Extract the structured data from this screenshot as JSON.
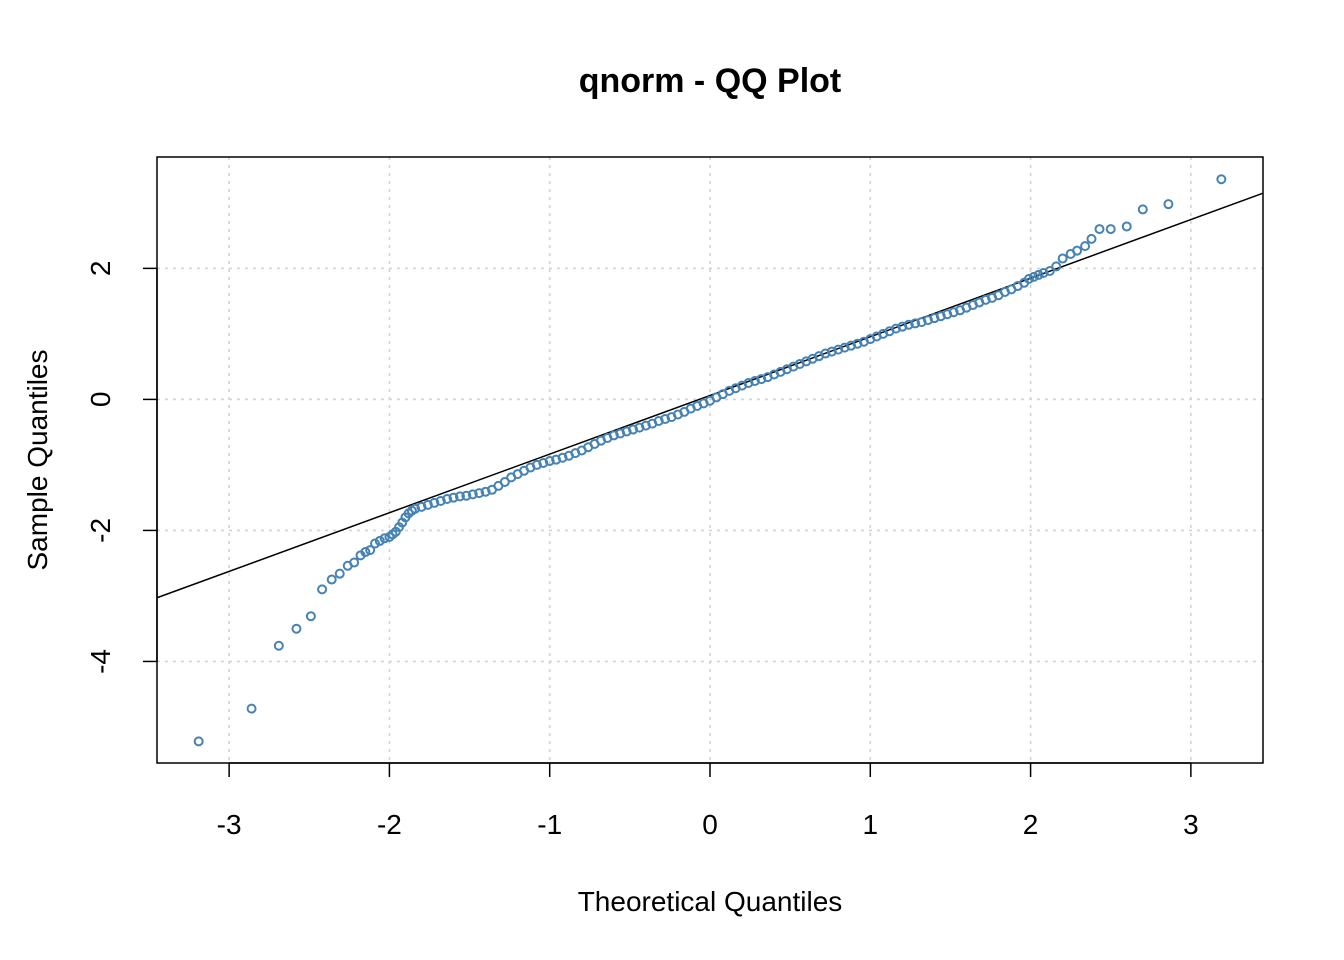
{
  "chart_data": {
    "type": "scatter",
    "title": "qnorm - QQ Plot",
    "xlabel": "Theoretical Quantiles",
    "ylabel": "Sample Quantiles",
    "xlim": [
      -3.45,
      3.45
    ],
    "ylim": [
      -5.55,
      3.7
    ],
    "x_ticks": [
      -3,
      -2,
      -1,
      0,
      1,
      2,
      3
    ],
    "y_ticks": [
      -4,
      -2,
      0,
      2
    ],
    "x_tick_labels": [
      "-3",
      "-2",
      "-1",
      "0",
      "1",
      "2",
      "3"
    ],
    "y_tick_labels": [
      "-4",
      "-2",
      "0",
      "2"
    ],
    "grid": true,
    "point_color": "#4682b4",
    "line_color": "#000000",
    "reference_line": {
      "intercept": 0.06,
      "slope": 0.895
    },
    "points": [
      [
        -3.19,
        -5.22
      ],
      [
        -2.86,
        -4.72
      ],
      [
        -2.69,
        -3.76
      ],
      [
        -2.58,
        -3.5
      ],
      [
        -2.49,
        -3.31
      ],
      [
        -2.42,
        -2.9
      ],
      [
        -2.36,
        -2.75
      ],
      [
        -2.31,
        -2.66
      ],
      [
        -2.26,
        -2.54
      ],
      [
        -2.22,
        -2.49
      ],
      [
        -2.18,
        -2.38
      ],
      [
        -2.15,
        -2.33
      ],
      [
        -2.12,
        -2.3
      ],
      [
        -2.09,
        -2.2
      ],
      [
        -2.06,
        -2.16
      ],
      [
        -2.03,
        -2.12
      ],
      [
        -2.0,
        -2.1
      ],
      [
        -1.98,
        -2.06
      ],
      [
        -1.96,
        -2.02
      ],
      [
        -1.94,
        -1.95
      ],
      [
        -1.92,
        -1.88
      ],
      [
        -1.9,
        -1.8
      ],
      [
        -1.88,
        -1.74
      ],
      [
        -1.86,
        -1.7
      ],
      [
        -1.84,
        -1.67
      ],
      [
        -1.8,
        -1.64
      ],
      [
        -1.76,
        -1.61
      ],
      [
        -1.72,
        -1.58
      ],
      [
        -1.68,
        -1.55
      ],
      [
        -1.64,
        -1.52
      ],
      [
        -1.6,
        -1.5
      ],
      [
        -1.56,
        -1.48
      ],
      [
        -1.52,
        -1.47
      ],
      [
        -1.48,
        -1.45
      ],
      [
        -1.44,
        -1.43
      ],
      [
        -1.4,
        -1.41
      ],
      [
        -1.36,
        -1.38
      ],
      [
        -1.32,
        -1.32
      ],
      [
        -1.28,
        -1.26
      ],
      [
        -1.24,
        -1.19
      ],
      [
        -1.2,
        -1.14
      ],
      [
        -1.16,
        -1.09
      ],
      [
        -1.12,
        -1.04
      ],
      [
        -1.08,
        -1.0
      ],
      [
        -1.04,
        -0.97
      ],
      [
        -1.0,
        -0.94
      ],
      [
        -0.96,
        -0.92
      ],
      [
        -0.92,
        -0.89
      ],
      [
        -0.88,
        -0.86
      ],
      [
        -0.84,
        -0.82
      ],
      [
        -0.8,
        -0.78
      ],
      [
        -0.76,
        -0.73
      ],
      [
        -0.72,
        -0.68
      ],
      [
        -0.68,
        -0.63
      ],
      [
        -0.64,
        -0.59
      ],
      [
        -0.6,
        -0.55
      ],
      [
        -0.56,
        -0.52
      ],
      [
        -0.52,
        -0.49
      ],
      [
        -0.48,
        -0.46
      ],
      [
        -0.44,
        -0.43
      ],
      [
        -0.4,
        -0.4
      ],
      [
        -0.36,
        -0.37
      ],
      [
        -0.32,
        -0.33
      ],
      [
        -0.28,
        -0.3
      ],
      [
        -0.24,
        -0.27
      ],
      [
        -0.2,
        -0.23
      ],
      [
        -0.16,
        -0.19
      ],
      [
        -0.12,
        -0.14
      ],
      [
        -0.08,
        -0.1
      ],
      [
        -0.04,
        -0.06
      ],
      [
        0.0,
        -0.02
      ],
      [
        0.04,
        0.03
      ],
      [
        0.08,
        0.08
      ],
      [
        0.12,
        0.13
      ],
      [
        0.16,
        0.17
      ],
      [
        0.2,
        0.21
      ],
      [
        0.24,
        0.25
      ],
      [
        0.28,
        0.28
      ],
      [
        0.32,
        0.31
      ],
      [
        0.36,
        0.34
      ],
      [
        0.4,
        0.38
      ],
      [
        0.44,
        0.42
      ],
      [
        0.48,
        0.46
      ],
      [
        0.52,
        0.5
      ],
      [
        0.56,
        0.54
      ],
      [
        0.6,
        0.58
      ],
      [
        0.64,
        0.62
      ],
      [
        0.68,
        0.66
      ],
      [
        0.72,
        0.7
      ],
      [
        0.76,
        0.73
      ],
      [
        0.8,
        0.76
      ],
      [
        0.84,
        0.79
      ],
      [
        0.88,
        0.82
      ],
      [
        0.92,
        0.85
      ],
      [
        0.96,
        0.88
      ],
      [
        1.0,
        0.92
      ],
      [
        1.04,
        0.96
      ],
      [
        1.08,
        1.0
      ],
      [
        1.12,
        1.04
      ],
      [
        1.16,
        1.08
      ],
      [
        1.2,
        1.11
      ],
      [
        1.24,
        1.14
      ],
      [
        1.28,
        1.16
      ],
      [
        1.32,
        1.18
      ],
      [
        1.36,
        1.21
      ],
      [
        1.4,
        1.24
      ],
      [
        1.44,
        1.27
      ],
      [
        1.48,
        1.3
      ],
      [
        1.52,
        1.33
      ],
      [
        1.56,
        1.36
      ],
      [
        1.6,
        1.4
      ],
      [
        1.64,
        1.44
      ],
      [
        1.68,
        1.48
      ],
      [
        1.72,
        1.52
      ],
      [
        1.76,
        1.55
      ],
      [
        1.8,
        1.59
      ],
      [
        1.84,
        1.64
      ],
      [
        1.88,
        1.68
      ],
      [
        1.92,
        1.73
      ],
      [
        1.96,
        1.78
      ],
      [
        1.99,
        1.84
      ],
      [
        2.02,
        1.87
      ],
      [
        2.05,
        1.9
      ],
      [
        2.08,
        1.93
      ],
      [
        2.12,
        1.96
      ],
      [
        2.16,
        2.03
      ],
      [
        2.2,
        2.15
      ],
      [
        2.25,
        2.22
      ],
      [
        2.29,
        2.27
      ],
      [
        2.34,
        2.34
      ],
      [
        2.38,
        2.45
      ],
      [
        2.43,
        2.6
      ],
      [
        2.5,
        2.6
      ],
      [
        2.6,
        2.64
      ],
      [
        2.7,
        2.9
      ],
      [
        2.86,
        2.98
      ],
      [
        3.19,
        3.36
      ]
    ]
  }
}
